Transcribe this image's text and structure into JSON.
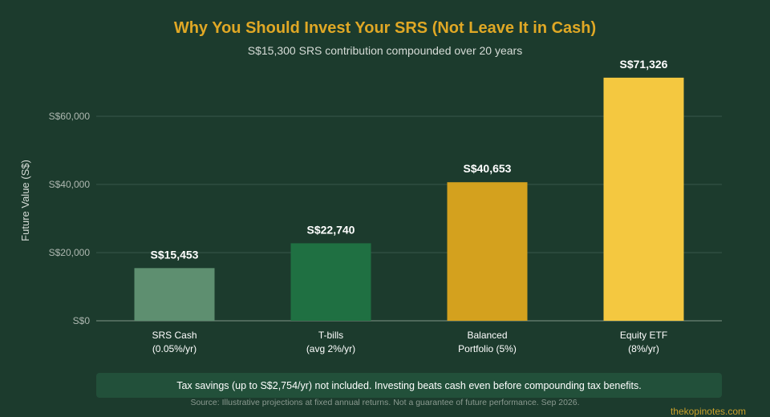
{
  "header": {
    "title": "Why You Should Invest Your SRS (Not Leave It in Cash)",
    "subtitle": "S$15,300 SRS contribution compounded over 20 years"
  },
  "chart_data": {
    "type": "bar",
    "categories": [
      [
        "SRS Cash",
        "(0.05%/yr)"
      ],
      [
        "T-bills",
        "(avg 2%/yr)"
      ],
      [
        "Balanced",
        "Portfolio (5%)"
      ],
      [
        "Equity ETF",
        "(8%/yr)"
      ]
    ],
    "values": [
      15453,
      22740,
      40653,
      71326
    ],
    "value_labels": [
      "S$15,453",
      "S$22,740",
      "S$40,653",
      "S$71,326"
    ],
    "bar_colors": [
      "#5e8f70",
      "#1f7042",
      "#d4a11e",
      "#f4c840"
    ],
    "ylabel": "Future Value (S$)",
    "ylim": [
      0,
      72000
    ],
    "yticks": [
      0,
      20000,
      40000,
      60000
    ],
    "ytick_labels": [
      "S$0",
      "S$20,000",
      "S$40,000",
      "S$60,000"
    ],
    "grid": true
  },
  "footer": {
    "note": "Tax savings (up to S$2,754/yr) not included. Investing beats cash even before compounding tax benefits.",
    "source": "Source: Illustrative projections at fixed annual returns. Not a guarantee of future performance. Sep 2026.",
    "brand": "thekopinotes.com"
  }
}
